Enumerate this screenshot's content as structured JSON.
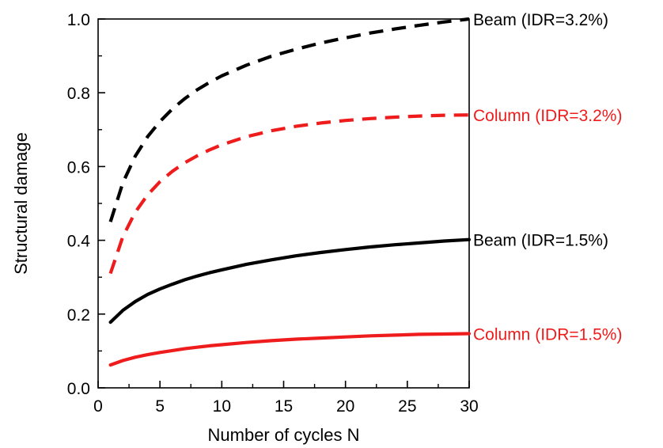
{
  "chart_data": {
    "type": "line",
    "xlabel": "Number of cycles N",
    "ylabel": "Structural damage",
    "xlim": [
      0,
      30
    ],
    "ylim": [
      0,
      1.0
    ],
    "xticks": [
      "0",
      "5",
      "10",
      "15",
      "20",
      "25",
      "30"
    ],
    "yticks": [
      "0.0",
      "0.2",
      "0.4",
      "0.6",
      "0.8",
      "1.0"
    ],
    "grid": false,
    "legend": "inline labels at right end of each curve",
    "series": [
      {
        "name": "Beam (IDR=3.2%)",
        "color": "#000000",
        "style": "dashed",
        "x": [
          1,
          2,
          3,
          4,
          5,
          6,
          7,
          8,
          9,
          10,
          12,
          14,
          16,
          18,
          20,
          22,
          24,
          26,
          28,
          30
        ],
        "y": [
          0.45,
          0.556,
          0.628,
          0.681,
          0.722,
          0.756,
          0.784,
          0.808,
          0.828,
          0.846,
          0.875,
          0.899,
          0.918,
          0.935,
          0.949,
          0.962,
          0.973,
          0.983,
          0.992,
          1.0
        ]
      },
      {
        "name": "Column (IDR=3.2%)",
        "color": "#ee1c1c",
        "style": "dashed",
        "x": [
          1,
          2,
          3,
          4,
          5,
          6,
          7,
          8,
          9,
          10,
          12,
          14,
          16,
          18,
          20,
          22,
          24,
          26,
          28,
          30
        ],
        "y": [
          0.31,
          0.41,
          0.476,
          0.523,
          0.559,
          0.587,
          0.61,
          0.629,
          0.645,
          0.659,
          0.681,
          0.697,
          0.709,
          0.718,
          0.725,
          0.73,
          0.734,
          0.737,
          0.739,
          0.74
        ]
      },
      {
        "name": "Beam (IDR=1.5%)",
        "color": "#000000",
        "style": "solid",
        "x": [
          1,
          2,
          3,
          4,
          5,
          6,
          7,
          8,
          9,
          10,
          12,
          14,
          16,
          18,
          20,
          22,
          24,
          26,
          28,
          30
        ],
        "y": [
          0.178,
          0.21,
          0.234,
          0.253,
          0.268,
          0.281,
          0.293,
          0.303,
          0.312,
          0.32,
          0.335,
          0.347,
          0.358,
          0.367,
          0.375,
          0.382,
          0.388,
          0.393,
          0.398,
          0.402
        ]
      },
      {
        "name": "Column (IDR=1.5%)",
        "color": "#ee1c1c",
        "style": "solid",
        "x": [
          1,
          2,
          3,
          4,
          5,
          6,
          7,
          8,
          9,
          10,
          12,
          14,
          16,
          18,
          20,
          22,
          24,
          26,
          28,
          30
        ],
        "y": [
          0.062,
          0.074,
          0.083,
          0.09,
          0.096,
          0.101,
          0.106,
          0.11,
          0.114,
          0.117,
          0.123,
          0.128,
          0.132,
          0.135,
          0.138,
          0.141,
          0.143,
          0.145,
          0.146,
          0.147
        ]
      }
    ]
  }
}
